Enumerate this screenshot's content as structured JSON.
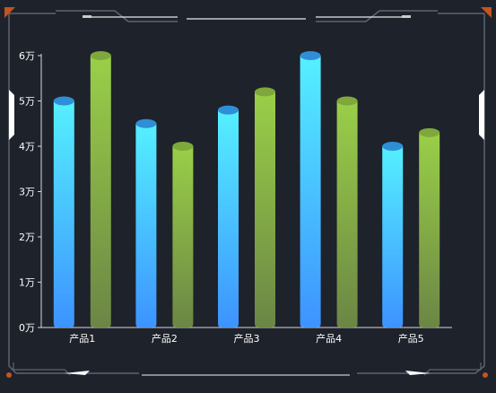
{
  "chart_data": {
    "type": "bar",
    "title": "",
    "xlabel": "",
    "ylabel": "",
    "categories": [
      "产品1",
      "产品2",
      "产品3",
      "产品4",
      "产品5"
    ],
    "ylim": [
      0,
      60000
    ],
    "yticks": [
      {
        "value": 0,
        "label": "0万"
      },
      {
        "value": 10000,
        "label": "1万"
      },
      {
        "value": 20000,
        "label": "2万"
      },
      {
        "value": 30000,
        "label": "3万"
      },
      {
        "value": 40000,
        "label": "4万"
      },
      {
        "value": 50000,
        "label": "5万"
      },
      {
        "value": 60000,
        "label": "6万"
      }
    ],
    "grid": false,
    "series": [
      {
        "values": [
          50000,
          45000,
          48000,
          60000,
          40000
        ],
        "color_top": "#55f0ff",
        "color_bottom": "#3d93ff",
        "cap_color": "#2f8fd6"
      },
      {
        "values": [
          60000,
          40000,
          52000,
          50000,
          43000
        ],
        "color_top": "#9acf48",
        "color_bottom": "#6b8645",
        "cap_color": "#7fa83c"
      }
    ]
  },
  "frame": {
    "line_color": "#5c6470",
    "accent_color": "#c4551e",
    "highlight_color": "#ffffff"
  }
}
